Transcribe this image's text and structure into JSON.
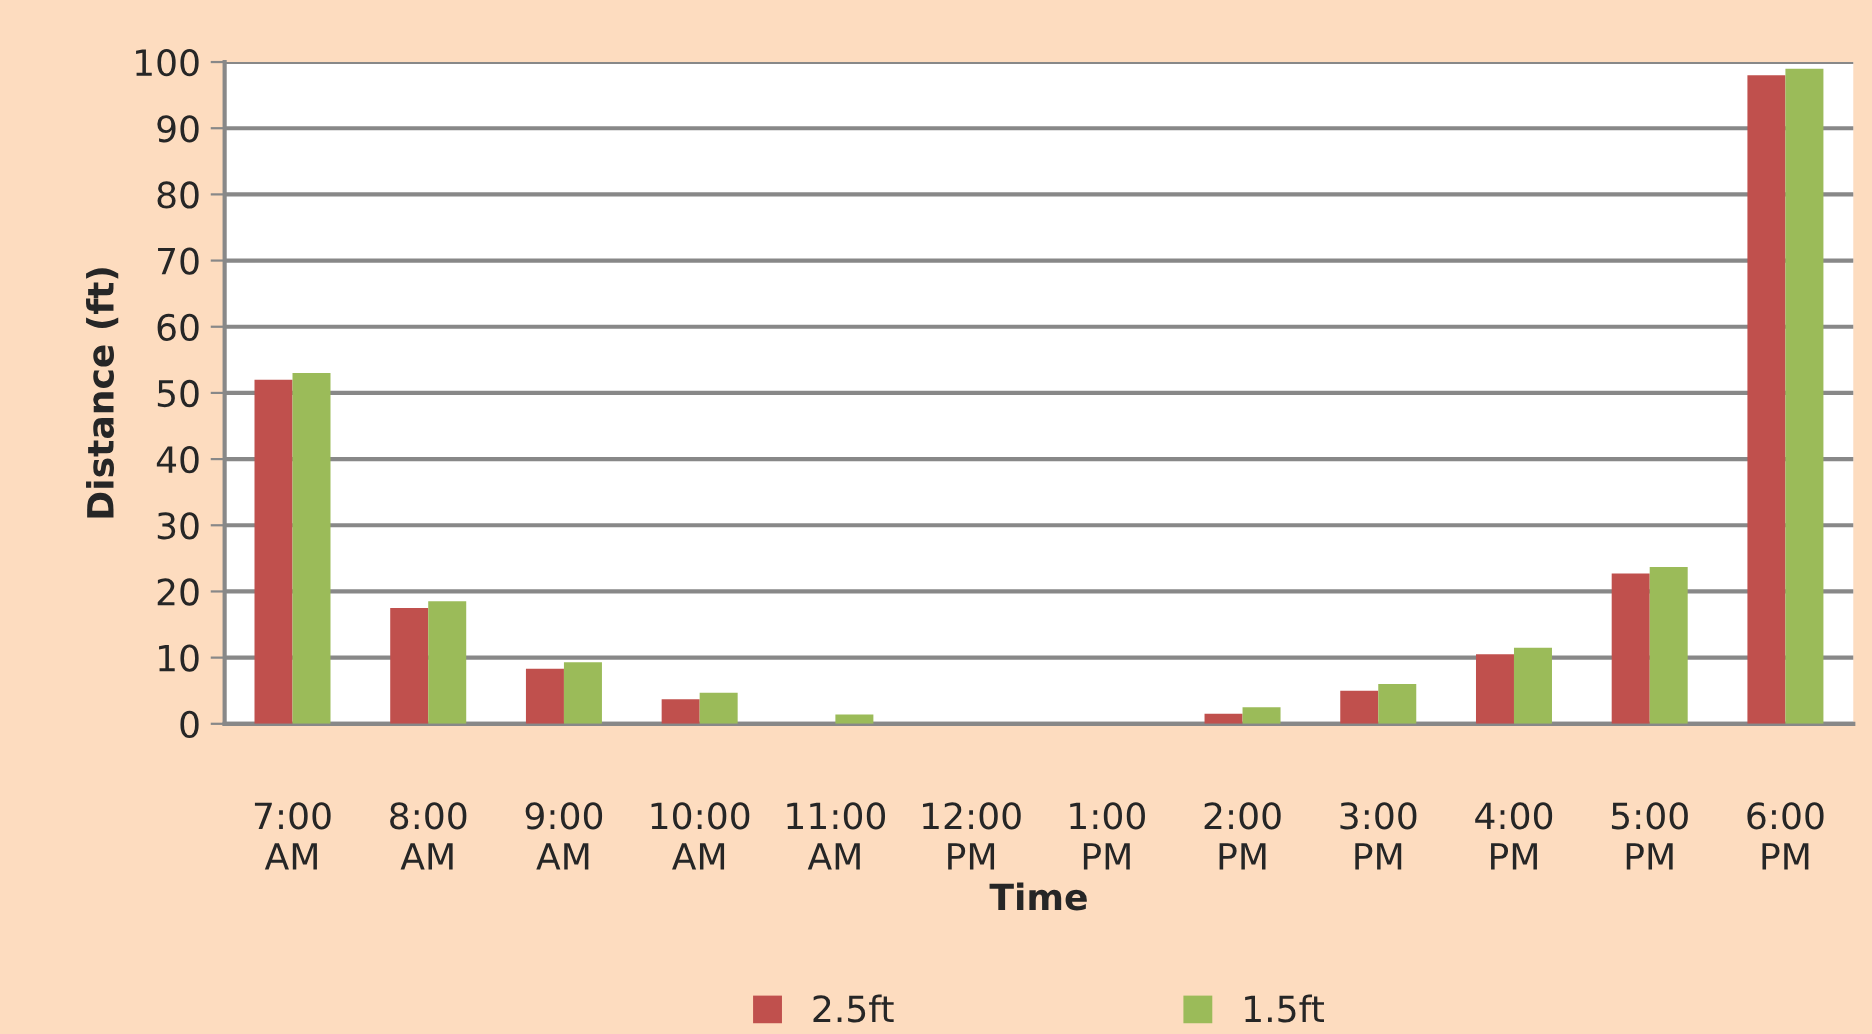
{
  "chart_data": {
    "type": "bar",
    "xlabel": "Time",
    "ylabel": "Distance (ft)",
    "categories": [
      "7:00 AM",
      "8:00 AM",
      "9:00 AM",
      "10:00 AM",
      "11:00 AM",
      "12:00 PM",
      "1:00 PM",
      "2:00 PM",
      "3:00 PM",
      "4:00 PM",
      "5:00 PM",
      "6:00 PM"
    ],
    "series": [
      {
        "name": "2.5ft",
        "color": "#c0504d",
        "values": [
          52,
          17.5,
          8.3,
          3.7,
          0,
          0,
          0,
          1.5,
          5,
          10.5,
          22.7,
          98
        ]
      },
      {
        "name": "1.5ft",
        "color": "#9bbb59",
        "values": [
          53,
          18.5,
          9.3,
          4.7,
          1.4,
          0,
          0,
          2.5,
          6,
          11.5,
          23.7,
          99
        ]
      }
    ],
    "ylim": [
      0,
      100
    ],
    "yticks": [
      0,
      10,
      20,
      30,
      40,
      50,
      60,
      70,
      80,
      90,
      100
    ],
    "grid": "y",
    "legend": "bottom"
  }
}
